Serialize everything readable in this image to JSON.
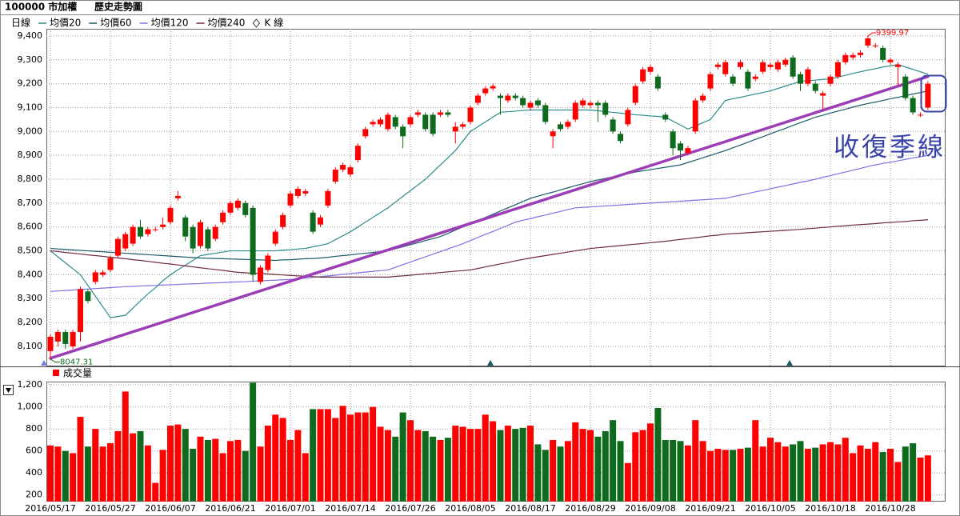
{
  "chart_data": {
    "type": "candlestick",
    "title": "100000 市加權",
    "subtitle": "歷史走勢圖",
    "legend_label": "日線",
    "candle_name": "K 線",
    "annotation": "收復季線",
    "up_color": "#ff0000",
    "down_color": "#0e6a1c",
    "grid": true,
    "categories": [
      "2016/05/17",
      null,
      null,
      null,
      null,
      null,
      null,
      null,
      "2016/05/27",
      null,
      null,
      null,
      null,
      null,
      null,
      null,
      "2016/06/07",
      null,
      null,
      null,
      null,
      null,
      null,
      null,
      "2016/06/21",
      null,
      null,
      null,
      null,
      null,
      null,
      null,
      "2016/07/01",
      null,
      null,
      null,
      null,
      null,
      null,
      null,
      "2016/07/14",
      null,
      null,
      null,
      null,
      null,
      null,
      null,
      "2016/07/26",
      null,
      null,
      null,
      null,
      null,
      null,
      null,
      "2016/08/05",
      null,
      null,
      null,
      null,
      null,
      null,
      null,
      "2016/08/17",
      null,
      null,
      null,
      null,
      null,
      null,
      null,
      "2016/08/29",
      null,
      null,
      null,
      null,
      null,
      null,
      null,
      "2016/09/08",
      null,
      null,
      null,
      null,
      null,
      null,
      null,
      "2016/09/21",
      null,
      null,
      null,
      null,
      null,
      null,
      null,
      "2016/10/05",
      null,
      null,
      null,
      null,
      null,
      null,
      null,
      "2016/10/18",
      null,
      null,
      null,
      null,
      null,
      null,
      null,
      "2016/10/28",
      null,
      null,
      null,
      null,
      null
    ],
    "open": [
      8080,
      8120,
      8160,
      8100,
      8160,
      8330,
      8370,
      8400,
      8420,
      8480,
      8510,
      8530,
      8600,
      8570,
      8590,
      8600,
      8620,
      8720,
      8640,
      8600,
      8520,
      8590,
      8550,
      8620,
      8660,
      8680,
      8700,
      8680,
      8370,
      8420,
      8530,
      8600,
      8690,
      8730,
      8740,
      8660,
      8610,
      8690,
      8790,
      8840,
      8820,
      8880,
      8980,
      9030,
      9030,
      9010,
      9060,
      9020,
      9030,
      9070,
      9070,
      9070,
      9070,
      9080,
      9000,
      9020,
      9040,
      9120,
      9160,
      9180,
      9150,
      9130,
      9150,
      9140,
      9100,
      9130,
      9110,
      8980,
      9030,
      9020,
      9050,
      9110,
      9110,
      9120,
      9120,
      9050,
      8990,
      9030,
      9120,
      9210,
      9250,
      9230,
      9070,
      9000,
      8950,
      8910,
      9000,
      9130,
      9180,
      9270,
      9240,
      9230,
      9270,
      9250,
      9220,
      9250,
      9270,
      9260,
      9280,
      9310,
      9240,
      9200,
      9200,
      9150,
      9200,
      9230,
      9290,
      9310,
      9320,
      9360,
      9360,
      9350,
      9290,
      9270,
      9230,
      9140,
      9070,
      9100
    ],
    "high": [
      8150,
      8170,
      8170,
      8170,
      8350,
      8340,
      8420,
      8420,
      8480,
      8560,
      8580,
      8610,
      8630,
      8600,
      8600,
      8640,
      8690,
      8750,
      8650,
      8610,
      8630,
      8600,
      8610,
      8670,
      8710,
      8720,
      8710,
      8690,
      8440,
      8490,
      8590,
      8660,
      8750,
      8770,
      8760,
      8670,
      8650,
      8760,
      8850,
      8870,
      8860,
      8950,
      9020,
      9050,
      9060,
      9080,
      9070,
      9030,
      9070,
      9090,
      9080,
      9080,
      9090,
      9090,
      9040,
      9040,
      9110,
      9160,
      9190,
      9200,
      9160,
      9160,
      9160,
      9150,
      9130,
      9140,
      9120,
      9010,
      9040,
      9050,
      9130,
      9140,
      9130,
      9130,
      9130,
      9060,
      9000,
      9100,
      9200,
      9270,
      9280,
      9240,
      9080,
      9010,
      8960,
      8940,
      9140,
      9160,
      9250,
      9290,
      9300,
      9240,
      9300,
      9260,
      9240,
      9300,
      9290,
      9300,
      9310,
      9320,
      9250,
      9270,
      9210,
      9170,
      9240,
      9300,
      9330,
      9330,
      9340,
      9399.97,
      9370,
      9360,
      9310,
      9290,
      9240,
      9150,
      9080,
      9210
    ],
    "low": [
      8047.31,
      8100,
      8090,
      8090,
      8120,
      8280,
      8360,
      8390,
      8410,
      8470,
      8500,
      8520,
      8550,
      8560,
      8580,
      8590,
      8610,
      8710,
      8540,
      8490,
      8510,
      8500,
      8540,
      8610,
      8650,
      8670,
      8640,
      8370,
      8360,
      8410,
      8520,
      8590,
      8680,
      8720,
      8730,
      8570,
      8600,
      8680,
      8780,
      8830,
      8810,
      8870,
      8970,
      9020,
      9020,
      9000,
      9010,
      8930,
      9020,
      9060,
      9000,
      8980,
      9060,
      9060,
      8950,
      9010,
      9030,
      9110,
      9150,
      9170,
      9070,
      9120,
      9130,
      9100,
      9090,
      9100,
      9030,
      8930,
      9000,
      9010,
      9040,
      9100,
      9100,
      9040,
      9060,
      8990,
      8950,
      9020,
      9110,
      9200,
      9240,
      9170,
      9040,
      8900,
      8880,
      8900,
      8990,
      9120,
      9170,
      9260,
      9230,
      9190,
      9260,
      9170,
      9210,
      9240,
      9260,
      9250,
      9270,
      9220,
      9170,
      9190,
      9160,
      9090,
      9190,
      9220,
      9280,
      9300,
      9310,
      9350,
      9350,
      9290,
      9280,
      9190,
      9130,
      9070,
      9060,
      9090
    ],
    "close": [
      8140,
      8160,
      8110,
      8160,
      8340,
      8290,
      8410,
      8410,
      8470,
      8550,
      8570,
      8600,
      8560,
      8590,
      8590,
      8610,
      8680,
      8730,
      8560,
      8510,
      8620,
      8510,
      8600,
      8660,
      8700,
      8710,
      8650,
      8400,
      8430,
      8480,
      8580,
      8650,
      8740,
      8760,
      8750,
      8580,
      8640,
      8750,
      8840,
      8860,
      8850,
      8940,
      9010,
      9040,
      9050,
      9070,
      9020,
      8980,
      9060,
      9080,
      9010,
      8990,
      9080,
      9070,
      9020,
      9030,
      9100,
      9150,
      9180,
      9190,
      9140,
      9150,
      9140,
      9110,
      9120,
      9110,
      9040,
      9000,
      9010,
      9040,
      9120,
      9130,
      9120,
      9110,
      9070,
      9000,
      8960,
      9090,
      9190,
      9260,
      9270,
      9180,
      9050,
      8930,
      8920,
      8930,
      9130,
      9150,
      9240,
      9280,
      9290,
      9200,
      9290,
      9180,
      9230,
      9290,
      9280,
      9290,
      9300,
      9230,
      9200,
      9260,
      9170,
      9160,
      9230,
      9290,
      9320,
      9320,
      9330,
      9390,
      9360,
      9300,
      9300,
      9280,
      9140,
      9080,
      9070,
      9200
    ],
    "ylim": [
      8016,
      9430
    ],
    "yticks": [
      {
        "value": 8100,
        "label": "8,100"
      },
      {
        "value": 8200,
        "label": "8,200"
      },
      {
        "value": 8300,
        "label": "8,300"
      },
      {
        "value": 8400,
        "label": "8,400"
      },
      {
        "value": 8500,
        "label": "8,500"
      },
      {
        "value": 8600,
        "label": "8,600"
      },
      {
        "value": 8700,
        "label": "8,700"
      },
      {
        "value": 8800,
        "label": "8,800"
      },
      {
        "value": 8900,
        "label": "8,900"
      },
      {
        "value": 9000,
        "label": "9,000"
      },
      {
        "value": 9100,
        "label": "9,100"
      },
      {
        "value": 9200,
        "label": "9,200"
      },
      {
        "value": 9300,
        "label": "9,300"
      },
      {
        "value": 9400,
        "label": "9,400"
      }
    ],
    "series": [
      {
        "name": "均價20",
        "color": "#2b8c8c",
        "values": [
          8500,
          8475,
          8450,
          8425,
          8400,
          8355,
          8310,
          8265,
          8220,
          8225,
          8230,
          8260,
          8290,
          8320,
          8345,
          8375,
          8400,
          8420,
          8440,
          8460,
          8480,
          8485,
          8490,
          8495,
          8500,
          8500,
          8500,
          8500,
          8500,
          8500,
          8500,
          8503,
          8505,
          8508,
          8510,
          8517,
          8523,
          8530,
          8547,
          8563,
          8580,
          8600,
          8620,
          8640,
          8660,
          8680,
          8704,
          8728,
          8752,
          8776,
          8800,
          8830,
          8860,
          8890,
          8920,
          8960,
          9000,
          9020,
          9040,
          9060,
          9080,
          9083,
          9085,
          9088,
          9090,
          9090,
          9090,
          9090,
          9090,
          9090,
          9090,
          9090,
          9090,
          9087,
          9083,
          9080,
          9077,
          9073,
          9070,
          9068,
          9065,
          9063,
          9060,
          9043,
          9027,
          9010,
          9023,
          9037,
          9050,
          9090,
          9130,
          9137,
          9143,
          9150,
          9157,
          9163,
          9170,
          9180,
          9190,
          9200,
          9210,
          9213,
          9215,
          9218,
          9220,
          9228,
          9235,
          9243,
          9250,
          9257,
          9263,
          9270,
          9275,
          9280,
          9270,
          9260,
          9250,
          9240
        ]
      },
      {
        "name": "均價60",
        "color": "#1c5a68",
        "values": [
          8510,
          8508,
          8506,
          8504,
          8502,
          8500,
          8498,
          8496,
          8494,
          8492,
          8490,
          8488,
          8486,
          8484,
          8482,
          8480,
          8478,
          8476,
          8474,
          8472,
          8470,
          8469,
          8468,
          8467,
          8466,
          8465,
          8464,
          8463,
          8462,
          8461,
          8460,
          8462,
          8463,
          8465,
          8467,
          8468,
          8470,
          8473,
          8477,
          8480,
          8483,
          8487,
          8490,
          8493,
          8497,
          8500,
          8509,
          8517,
          8526,
          8534,
          8543,
          8551,
          8560,
          8573,
          8587,
          8600,
          8613,
          8627,
          8640,
          8653,
          8667,
          8680,
          8693,
          8707,
          8720,
          8729,
          8738,
          8746,
          8755,
          8764,
          8773,
          8781,
          8790,
          8797,
          8803,
          8810,
          8817,
          8823,
          8830,
          8835,
          8840,
          8845,
          8850,
          8855,
          8860,
          8870,
          8880,
          8890,
          8900,
          8910,
          8920,
          8932,
          8943,
          8955,
          8967,
          8978,
          8990,
          9002,
          9013,
          9025,
          9037,
          9048,
          9060,
          9068,
          9077,
          9085,
          9093,
          9102,
          9110,
          9117,
          9123,
          9130,
          9137,
          9143,
          9150,
          9157,
          9163,
          9170
        ]
      },
      {
        "name": "均價120",
        "color": "#7b72e6",
        "values": [
          8330,
          8332,
          8334,
          8336,
          8338,
          8340,
          8342,
          8344,
          8346,
          8348,
          8350,
          8351,
          8353,
          8354,
          8355,
          8357,
          8358,
          8359,
          8361,
          8362,
          8363,
          8365,
          8366,
          8367,
          8369,
          8370,
          8371,
          8373,
          8374,
          8376,
          8377,
          8379,
          8380,
          8383,
          8386,
          8389,
          8392,
          8395,
          8398,
          8402,
          8405,
          8408,
          8411,
          8414,
          8417,
          8420,
          8431,
          8442,
          8453,
          8464,
          8475,
          8486,
          8497,
          8508,
          8519,
          8530,
          8543,
          8556,
          8569,
          8581,
          8594,
          8607,
          8620,
          8628,
          8635,
          8643,
          8650,
          8658,
          8665,
          8673,
          8680,
          8682,
          8684,
          8686,
          8688,
          8690,
          8692,
          8694,
          8696,
          8698,
          8700,
          8702,
          8704,
          8706,
          8708,
          8710,
          8712,
          8714,
          8716,
          8718,
          8720,
          8727,
          8733,
          8740,
          8747,
          8753,
          8760,
          8767,
          8773,
          8780,
          8787,
          8793,
          8800,
          8808,
          8815,
          8823,
          8830,
          8838,
          8845,
          8853,
          8860,
          8866,
          8871,
          8877,
          8883,
          8889,
          8894,
          8900
        ]
      },
      {
        "name": "均價240",
        "color": "#6e2a3e",
        "values": [
          8500,
          8497,
          8493,
          8490,
          8487,
          8483,
          8480,
          8477,
          8473,
          8470,
          8467,
          8463,
          8460,
          8456,
          8452,
          8448,
          8445,
          8441,
          8437,
          8433,
          8429,
          8425,
          8422,
          8418,
          8414,
          8410,
          8408,
          8406,
          8405,
          8403,
          8401,
          8399,
          8397,
          8395,
          8394,
          8392,
          8390,
          8390,
          8390,
          8390,
          8390,
          8390,
          8390,
          8390,
          8390,
          8390,
          8393,
          8395,
          8398,
          8401,
          8404,
          8406,
          8409,
          8412,
          8415,
          8417,
          8420,
          8426,
          8433,
          8439,
          8445,
          8451,
          8458,
          8464,
          8470,
          8475,
          8480,
          8485,
          8490,
          8495,
          8500,
          8505,
          8510,
          8513,
          8516,
          8519,
          8522,
          8525,
          8528,
          8531,
          8534,
          8537,
          8540,
          8544,
          8548,
          8551,
          8555,
          8559,
          8563,
          8566,
          8570,
          8572,
          8574,
          8576,
          8578,
          8580,
          8582,
          8584,
          8586,
          8588,
          8590,
          8593,
          8595,
          8598,
          8600,
          8603,
          8605,
          8608,
          8610,
          8612,
          8614,
          8617,
          8619,
          8621,
          8623,
          8626,
          8628,
          8630
        ]
      }
    ],
    "trendline": {
      "color": "#9b3db5",
      "values": [
        8050,
        9230
      ]
    },
    "volume": {
      "name": "成交量",
      "values": [
        650,
        640,
        600,
        580,
        910,
        640,
        800,
        640,
        670,
        780,
        1140,
        760,
        780,
        650,
        310,
        610,
        830,
        840,
        800,
        620,
        730,
        700,
        710,
        580,
        690,
        700,
        600,
        1220,
        640,
        830,
        930,
        900,
        700,
        790,
        580,
        980,
        980,
        980,
        900,
        1010,
        930,
        950,
        950,
        1000,
        820,
        790,
        730,
        950,
        880,
        790,
        780,
        730,
        700,
        720,
        830,
        820,
        800,
        800,
        930,
        870,
        790,
        830,
        800,
        810,
        830,
        660,
        610,
        700,
        640,
        690,
        860,
        800,
        790,
        730,
        780,
        880,
        690,
        490,
        770,
        790,
        850,
        990,
        700,
        700,
        690,
        650,
        880,
        690,
        600,
        620,
        610,
        610,
        620,
        630,
        880,
        640,
        720,
        680,
        640,
        660,
        690,
        620,
        630,
        660,
        680,
        660,
        720,
        580,
        650,
        620,
        680,
        590,
        620,
        500,
        640,
        670,
        540,
        560
      ],
      "ylim": [
        140,
        1230
      ],
      "yticks": [
        200,
        400,
        600,
        800,
        {
          "value": 1000,
          "label": "1,000"
        },
        {
          "value": 1200,
          "label": "1,200"
        }
      ]
    }
  }
}
